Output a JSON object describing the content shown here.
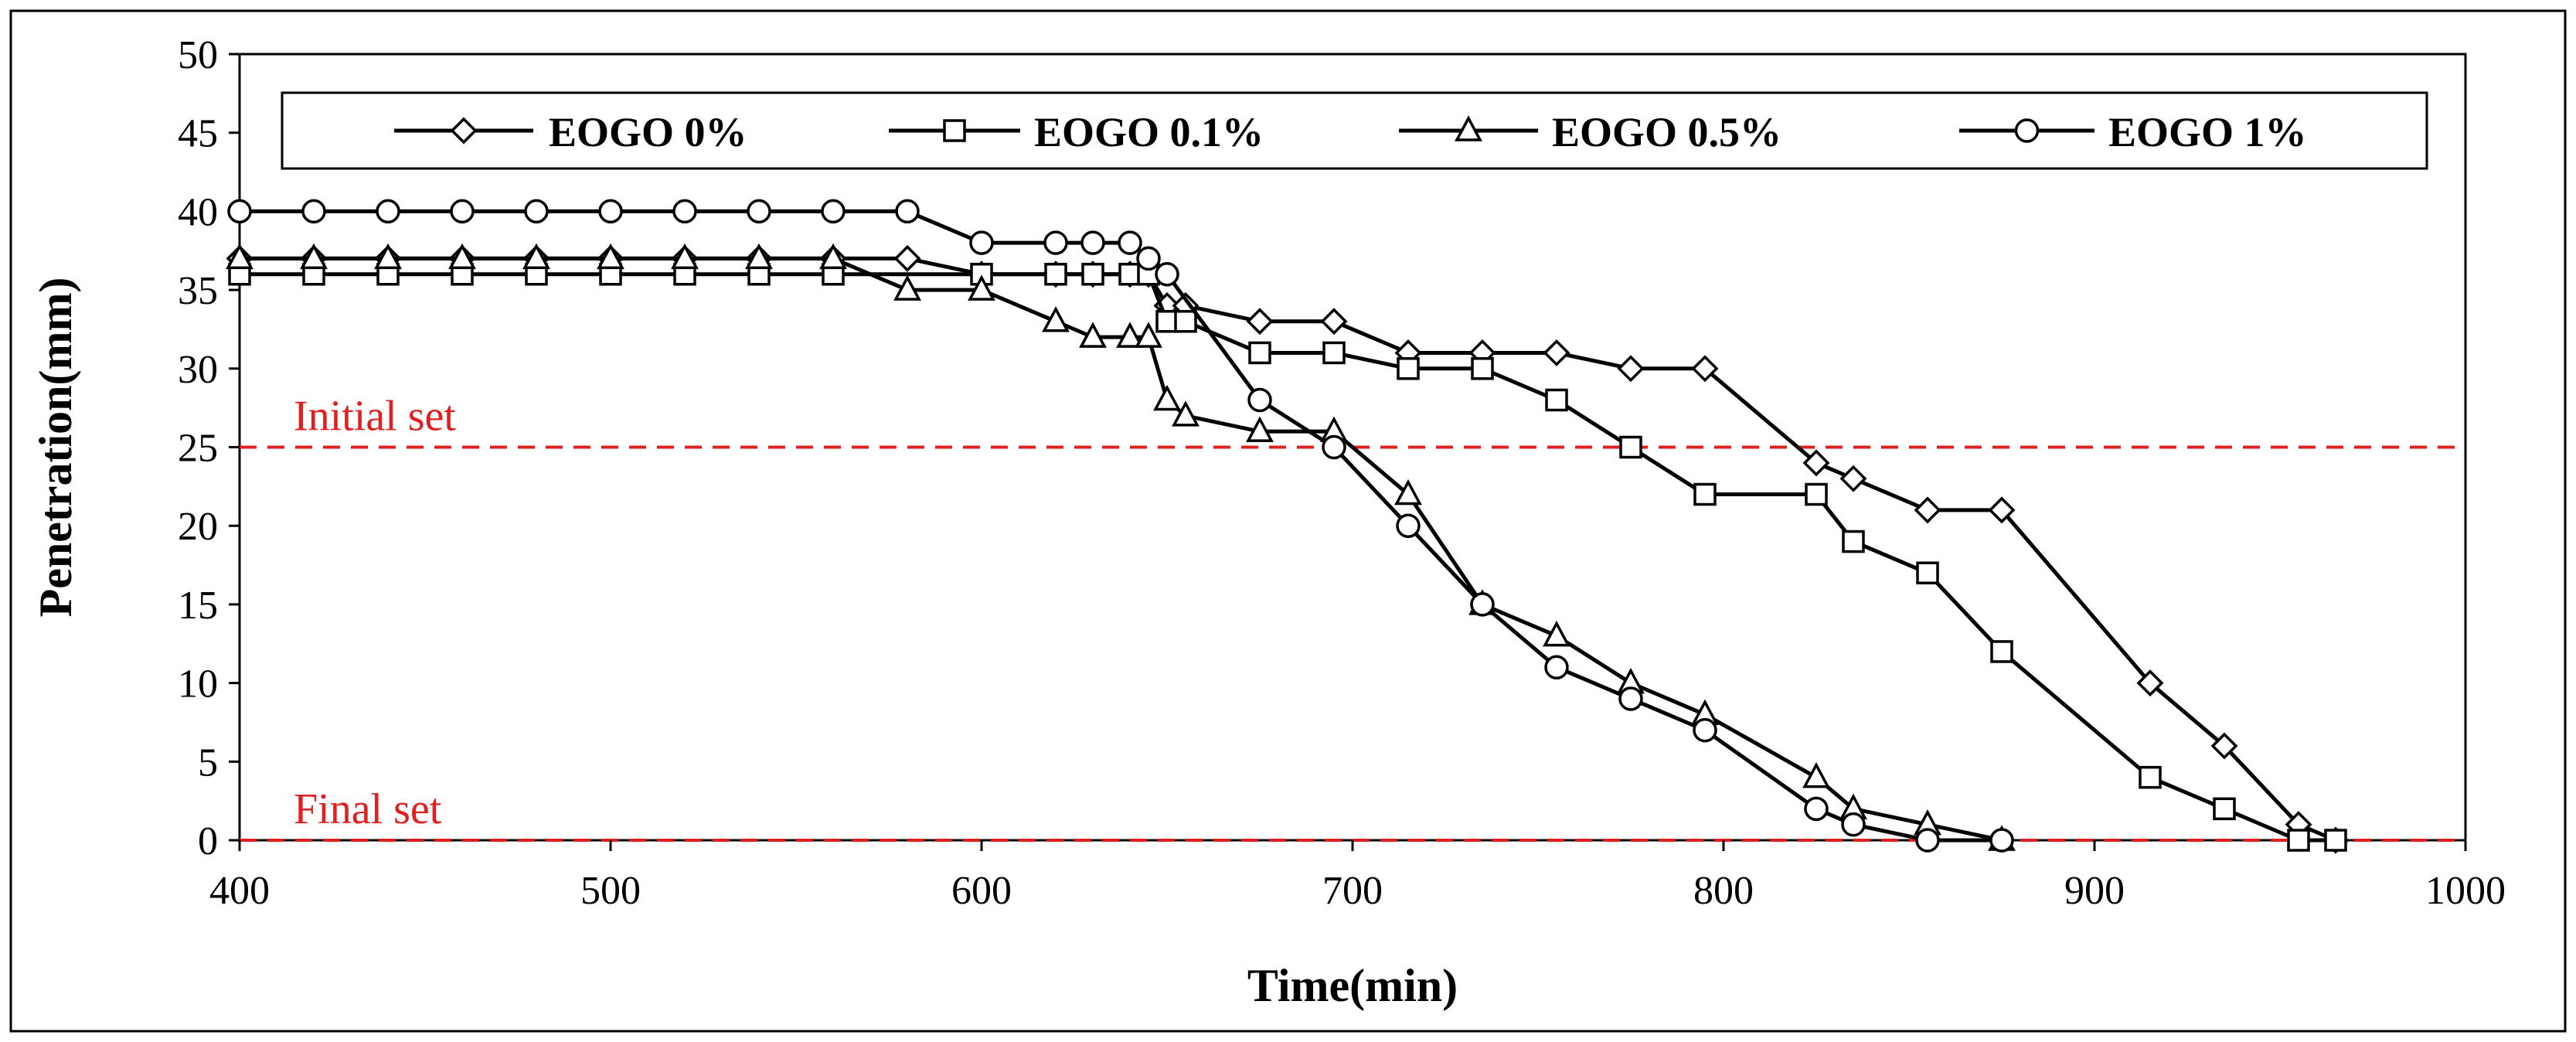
{
  "chart_data": {
    "type": "line",
    "title": "",
    "xlabel": "Time(min)",
    "ylabel": "Penetration(mm)",
    "xlim": [
      400,
      1000
    ],
    "ylim": [
      0,
      50
    ],
    "xticks": [
      400,
      500,
      600,
      700,
      800,
      900,
      1000
    ],
    "yticks": [
      0,
      5,
      10,
      15,
      20,
      25,
      30,
      35,
      40,
      45,
      50
    ],
    "grid": false,
    "legend_position": "top",
    "series": [
      {
        "name": "EOGO 0%",
        "marker": "diamond",
        "color": "#000000",
        "x": [
          400,
          420,
          440,
          460,
          480,
          500,
          520,
          540,
          560,
          580,
          600,
          620,
          630,
          640,
          645,
          650,
          655,
          675,
          695,
          715,
          735,
          755,
          775,
          795,
          825,
          835,
          855,
          875,
          915,
          935,
          955,
          965
        ],
        "y": [
          37,
          37,
          37,
          37,
          37,
          37,
          37,
          37,
          37,
          37,
          36,
          36,
          36,
          36,
          36,
          34,
          34,
          33,
          33,
          31,
          31,
          31,
          30,
          30,
          24,
          23,
          21,
          21,
          10,
          6,
          1,
          0
        ]
      },
      {
        "name": "EOGO 0.1%",
        "marker": "square",
        "color": "#000000",
        "x": [
          400,
          420,
          440,
          460,
          480,
          500,
          520,
          540,
          560,
          600,
          620,
          630,
          640,
          645,
          650,
          655,
          675,
          695,
          715,
          735,
          755,
          775,
          795,
          825,
          835,
          855,
          875,
          915,
          935,
          955,
          965
        ],
        "y": [
          36,
          36,
          36,
          36,
          36,
          36,
          36,
          36,
          36,
          36,
          36,
          36,
          36,
          36,
          33,
          33,
          31,
          31,
          30,
          30,
          28,
          25,
          22,
          22,
          19,
          17,
          12,
          4,
          2,
          0,
          0
        ]
      },
      {
        "name": "EOGO 0.5%",
        "marker": "triangle",
        "color": "#000000",
        "x": [
          400,
          420,
          440,
          460,
          480,
          500,
          520,
          540,
          560,
          580,
          600,
          620,
          630,
          640,
          645,
          650,
          655,
          675,
          695,
          715,
          735,
          755,
          775,
          795,
          825,
          835,
          855,
          875
        ],
        "y": [
          37,
          37,
          37,
          37,
          37,
          37,
          37,
          37,
          37,
          35,
          35,
          33,
          32,
          32,
          32,
          28,
          27,
          26,
          26,
          22,
          15,
          13,
          10,
          8,
          4,
          2,
          1,
          0
        ]
      },
      {
        "name": "EOGO 1%",
        "marker": "circle",
        "color": "#000000",
        "x": [
          400,
          420,
          440,
          460,
          480,
          500,
          520,
          540,
          560,
          580,
          600,
          620,
          630,
          640,
          645,
          650,
          675,
          695,
          715,
          735,
          755,
          775,
          795,
          825,
          835,
          855,
          875
        ],
        "y": [
          40,
          40,
          40,
          40,
          40,
          40,
          40,
          40,
          40,
          40,
          38,
          38,
          38,
          38,
          37,
          36,
          28,
          25,
          20,
          15,
          11,
          9,
          7,
          2,
          1,
          0,
          0
        ]
      }
    ],
    "reference_lines": [
      {
        "label": "Initial set",
        "y": 25,
        "color": "#e02020"
      },
      {
        "label": "Final set",
        "y": 0,
        "color": "#e02020"
      }
    ]
  }
}
